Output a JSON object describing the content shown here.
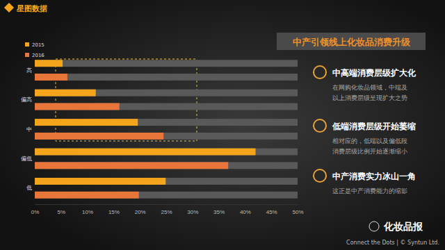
{
  "chart_data": {
    "type": "bar",
    "orientation": "horizontal",
    "title": "中产引领线上化妆品消费升级",
    "categories": [
      "高",
      "偏高",
      "中",
      "偏低",
      "低"
    ],
    "series": [
      {
        "name": "2015",
        "color": "#f5a51c",
        "values": [
          5.3,
          11.6,
          19.6,
          42,
          24.9
        ]
      },
      {
        "name": "2016",
        "color": "#e8763a",
        "values": [
          6.2,
          16.1,
          24.5,
          36.8,
          19.8
        ]
      }
    ],
    "xlim": [
      0,
      50
    ],
    "xticks": [
      {
        "value": 0,
        "label": "0%"
      },
      {
        "value": 5,
        "label": "5%"
      },
      {
        "value": 10,
        "label": "10%"
      },
      {
        "value": 15,
        "label": "15%"
      },
      {
        "value": 20,
        "label": "20%"
      },
      {
        "value": 25,
        "label": "25%"
      },
      {
        "value": 30,
        "label": "30%"
      },
      {
        "value": 35,
        "label": "35%"
      },
      {
        "value": 40,
        "label": "40%"
      },
      {
        "value": 45,
        "label": "45%"
      },
      {
        "value": 50,
        "label": "50%"
      }
    ],
    "grid": false,
    "legend": "top-left",
    "annotations": [
      {
        "title": "中高端消费层级扩大化",
        "text": [
          "在网购化妆品领域，中端及",
          "以上消费层级呈现扩大之势"
        ]
      },
      {
        "title": "低端消费层级开始萎缩",
        "text": [
          "相对应的，低端以及偏低段",
          "消费层级比例开始逐渐缩小"
        ]
      },
      {
        "title": "中产消费实力冰山一角",
        "text": [
          "这正是中产消费能力的缩影"
        ]
      }
    ]
  },
  "page": {
    "logo": "星图数据",
    "footer": "Connect the Dots | © Syntun Ltd.",
    "watermark": "化妆品报"
  }
}
